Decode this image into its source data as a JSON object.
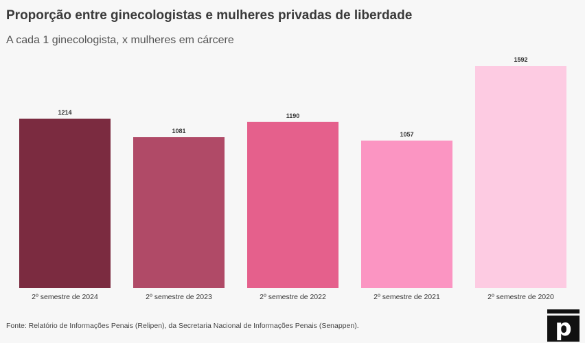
{
  "chart_data": {
    "type": "bar",
    "title": "Proporção entre ginecologistas e mulheres privadas de liberdade",
    "subtitle": "A cada 1 ginecologista, x mulheres em cárcere",
    "categories": [
      "2º semestre de 2024",
      "2º semestre de 2023",
      "2º semestre de 2022",
      "2º semestre de 2021",
      "2º semestre de 2020"
    ],
    "values": [
      1214,
      1081,
      1190,
      1057,
      1592
    ],
    "colors": [
      "#7b2b40",
      "#b04a67",
      "#e5608c",
      "#fb95c2",
      "#fdcbe2"
    ],
    "ylim": [
      0,
      1592
    ],
    "grid": false,
    "xlabel": "",
    "ylabel": ""
  },
  "footer": {
    "source": "Fonte: Relatório de Informações Penais (Relipen), da Secretaria Nacional de Informações Penais (Senappen).",
    "logo_letter": "p"
  }
}
